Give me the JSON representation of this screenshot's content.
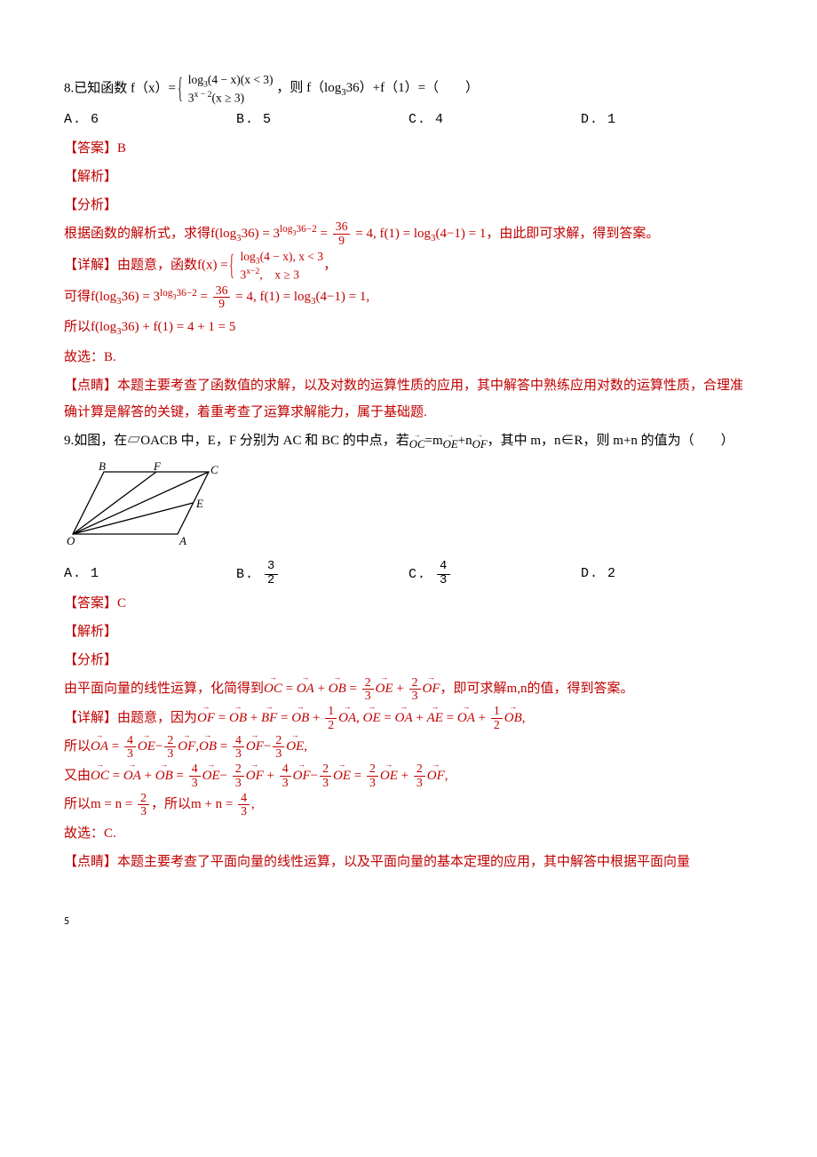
{
  "q8": {
    "stem_pre": "8.已知函数 f（x）=",
    "case1": "log<sub>3</sub>(4 − x)(x < 3)",
    "case2": "3<sup>x − 2</sup>(x ≥ 3)",
    "stem_post": "，则 f（log<sub>3</sub>36）+f（1）=（　　）",
    "optA": "A.  6",
    "optB": "B.  5",
    "optC": "C.  4",
    "optD": "D.  1",
    "ans_lbl": "【答案】",
    "ans": "B",
    "jiexi": "【解析】",
    "fenxi": "【分析】",
    "fenxi_body_pre": "根据函数的解析式，求得f(log<sub>3</sub>36) = 3",
    "fenxi_body_exp": "log<sub>3</sub>36−2",
    "fenxi_body_mid": " = ",
    "fenxi_body_fracn": "36",
    "fenxi_body_fracd": "9",
    "fenxi_body_post": " = 4,  f(1) = log<sub>3</sub>(4−1) = 1，由此即可求解，得到答案。",
    "xj_lbl": "【详解】",
    "xj1_pre": "由题意，函数f(x) = ",
    "xj1_c1": "log<sub>3</sub>(4 − x), x < 3",
    "xj1_c2": "3<sup>x−2</sup>,　x ≥ 3",
    "xj1_post": "，",
    "xj2_pre": "可得f(log<sub>3</sub>36) = 3",
    "xj2_exp": "log<sub>3</sub>36−2",
    "xj2_mid": " = ",
    "xj2_fn": "36",
    "xj2_fd": "9",
    "xj2_post": " = 4,  f(1) = log<sub>3</sub>(4−1) = 1,",
    "xj3": "所以f(log<sub>3</sub>36) + f(1) = 4 + 1 = 5",
    "gx": "故选：B.",
    "dj_lbl": "【点睛】",
    "dj": "本题主要考查了函数值的求解，以及对数的运算性质的应用，其中解答中熟练应用对数的运算性质，合理准确计算是解答的关键，着重考查了运算求解能力，属于基础题."
  },
  "q9": {
    "stem_pre": "9.如图，在▱OACB 中，E，F 分别为 AC 和 BC 的中点，若",
    "stem_mid1": "=m",
    "stem_mid2": "+n",
    "stem_post": "，其中 m，n∈R，则 m+n 的值为（　　）",
    "optA": "A.  1",
    "optB_pre": "B.  ",
    "optB_n": "3",
    "optB_d": "2",
    "optC_pre": "C.  ",
    "optC_n": "4",
    "optC_d": "3",
    "optD": "D.  2",
    "ans_lbl": "【答案】",
    "ans": "C",
    "jiexi": "【解析】",
    "fenxi": "【分析】",
    "fx_pre": "由平面向量的线性运算，化简得到",
    "fx_eq1": " = ",
    "fx_plus": " + ",
    "fx_eq2": " = ",
    "fx_fn": "2",
    "fx_fd": "3",
    "fx_post": "，即可求解m,n的值，得到答案。",
    "xj_lbl": "【详解】",
    "xj1_pre": "由题意，因为",
    "xj1_half_n": "1",
    "xj1_half_d": "2",
    "xj1_comma": ", ",
    "xj2_pre": "所以",
    "n43": "4",
    "d43": "3",
    "n23": "2",
    "d23": "3",
    "xj3_pre": "又由",
    "xj4_pre": "所以m = n = ",
    "xj4_mid": "，所以m + n = ",
    "n4": "4",
    "d3": "3",
    "xj4_post": ",",
    "gx": "故选：C.",
    "dj_lbl": "【点睛】",
    "dj": "本题主要考查了平面向量的线性运算，以及平面向量的基本定理的应用，其中解答中根据平面向量"
  },
  "diagram": {
    "O": "O",
    "A": "A",
    "B": "B",
    "C": "C",
    "E": "E",
    "F": "F",
    "stroke": "#000000"
  },
  "page_no": "5"
}
